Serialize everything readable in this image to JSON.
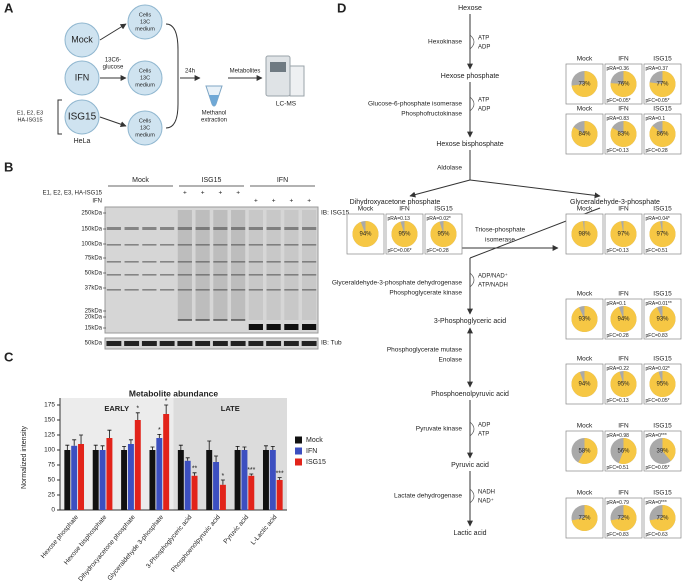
{
  "panel_a": {
    "letter": "A",
    "conditions": [
      "Mock",
      "IFN",
      "ISG15"
    ],
    "transfection": [
      "E1, E2, E3",
      "HA-ISG15"
    ],
    "cell_line": "HeLa",
    "label_step": [
      "13C6-",
      "glucose"
    ],
    "cells": [
      "Cells",
      "13C",
      "medium"
    ],
    "time": "24h",
    "extraction": [
      "Methanol",
      "extraction"
    ],
    "metabolites": "Metabolites",
    "instrument": "LC-MS"
  },
  "blot": {
    "letter": "B",
    "groups": [
      "Mock",
      "ISG15",
      "IFN"
    ],
    "rows": [
      {
        "label": "E1, E2, E3, HA-ISG15",
        "signs": [
          "+",
          "+",
          "+",
          "+"
        ]
      },
      {
        "label": "IFN",
        "signs": [
          "+",
          "+",
          "+",
          "+"
        ]
      }
    ],
    "markers": [
      "250kDa",
      "150kDa",
      "100kDa",
      "75kDa",
      "50kDa",
      "37kDa",
      "25kDa",
      "20kDa",
      "15kDa"
    ],
    "tub_marker": "50kDa",
    "ib_top": "IB: ISG15",
    "ib_bottom": "IB: Tub"
  },
  "chart_data": {
    "type": "bar",
    "letter": "C",
    "title": "Metabolite abundance",
    "y_label": "Normalized intensity",
    "categories": [
      "Hexose phosphate",
      "Hexose bisphosphate",
      "Dihydroxyacetone phosphate",
      "Glyceraldehyde 3-phosphate",
      "3-Phosphoglyceric acid",
      "Phosphoenolpyruvic acid",
      "Pyruvic acid",
      "L-Lactic acid"
    ],
    "series": [
      {
        "name": "Mock",
        "color": "#111111",
        "values": [
          100,
          100,
          100,
          100,
          100,
          100,
          100,
          100
        ],
        "errors": [
          8,
          8,
          6,
          5,
          8,
          15,
          6,
          7
        ],
        "significance": [
          null,
          null,
          null,
          null,
          null,
          null,
          null,
          null
        ]
      },
      {
        "name": "IFN",
        "color": "#3c4fc0",
        "values": [
          107,
          100,
          110,
          120,
          82,
          80,
          100,
          100
        ],
        "errors": [
          10,
          7,
          7,
          6,
          5,
          10,
          5,
          6
        ],
        "significance": [
          null,
          null,
          null,
          "*",
          null,
          null,
          null,
          null
        ]
      },
      {
        "name": "ISG15",
        "color": "#e2231a",
        "values": [
          110,
          120,
          150,
          160,
          57,
          42,
          57,
          50
        ],
        "errors": [
          15,
          13,
          12,
          15,
          5,
          8,
          3,
          4
        ],
        "significance": [
          null,
          null,
          "*",
          "*",
          "**",
          "*",
          "***",
          "***"
        ]
      }
    ],
    "regions": [
      {
        "label": "EARLY",
        "from": 0,
        "to": 3
      },
      {
        "label": "LATE",
        "from": 4,
        "to": 7
      }
    ],
    "ylim": [
      0,
      175
    ],
    "yticks": [
      0,
      25,
      50,
      75,
      100,
      125,
      150,
      175
    ]
  },
  "pathway": {
    "letter": "D",
    "nodes": [
      "Hexose",
      "Hexose phosphate",
      "Hexose bisphosphate",
      "Dihydroxyacetone phosphate",
      "Glyceraldehyde-3-phosphate",
      "3-Phosphoglyceric acid",
      "Phosphoenolpyruvic acid",
      "Pyruvic acid",
      "Lactic acid"
    ],
    "enzymes": [
      {
        "lines": [
          "Hexokinase"
        ],
        "color": "#999999"
      },
      {
        "lines": [
          "Glucose-6-phosphate isomerase",
          "Phosphofructokinase"
        ],
        "color": "#999999"
      },
      {
        "lines": [
          "Aldolase"
        ],
        "color": "#999999"
      },
      {
        "lines": [
          "Triose-phosphate",
          "isomerase"
        ],
        "color": "#999999"
      },
      {
        "lines": [
          "Glyceraldehyde-3-phosphate dehydrogenase",
          "Phosphoglycerate kinase"
        ],
        "color": "#d62020"
      },
      {
        "lines": [
          "Phosphoglycerate mutase",
          "Enolase"
        ],
        "color": "#999999"
      },
      {
        "lines": [
          "Pyruvate kinase"
        ],
        "color": "#999999"
      },
      {
        "lines": [
          "Lactate dehydrogenase"
        ],
        "color": "#999999"
      }
    ],
    "cofactors": [
      {
        "in": "ATP",
        "out": "ADP",
        "color": "#d62020"
      },
      {
        "in": "ATP",
        "out": "ADP",
        "color": "#d62020"
      },
      {
        "in": "ADP/NAD⁺",
        "out": "ATP/NADH",
        "color": "#7a3c9c"
      },
      {
        "in": "ADP",
        "out": "ATP",
        "color": "#d62020"
      },
      {
        "in": "NADH",
        "out": "NAD⁺",
        "color": "#3c4fc0"
      }
    ]
  },
  "pie_groups": [
    {
      "pies": [
        {
          "condition": "Mock",
          "value": 73,
          "label": "73%"
        },
        {
          "condition": "IFN",
          "value": 76,
          "label": "76%",
          "pRA": "pRA=0.36",
          "pFC": "pFC=0.05*"
        },
        {
          "condition": "ISG15",
          "value": 77,
          "label": "77%",
          "pRA": "pRA=0.37",
          "pFC": "pFC=0.05*"
        }
      ]
    },
    {
      "pies": [
        {
          "condition": "Mock",
          "value": 84,
          "label": "84%"
        },
        {
          "condition": "IFN",
          "value": 83,
          "label": "83%",
          "pRA": "pRA=0.83",
          "pFC": "pFC=0.13"
        },
        {
          "condition": "ISG15",
          "value": 86,
          "label": "86%",
          "pRA": "pRA=0.1",
          "pFC": "pFC=0.28"
        }
      ]
    },
    {
      "pies": [
        {
          "condition": "Mock",
          "value": 94,
          "label": "94%"
        },
        {
          "condition": "IFN",
          "value": 95,
          "label": "95%",
          "pRA": "pRA=0.13",
          "pFC": "pFC=0.06*"
        },
        {
          "condition": "ISG15",
          "value": 95,
          "label": "95%",
          "pRA": "pRA=0.02*",
          "pFC": "pFC=0.28"
        }
      ]
    },
    {
      "pies": [
        {
          "condition": "Mock",
          "value": 98,
          "label": "98%"
        },
        {
          "condition": "IFN",
          "value": 97,
          "label": "97%",
          "pFC": "pFC=0.13"
        },
        {
          "condition": "ISG15",
          "value": 97,
          "label": "97%",
          "pRA": "pRA=0.04*",
          "pFC": "pFC=0.51"
        }
      ]
    },
    {
      "pies": [
        {
          "condition": "Mock",
          "value": 93,
          "label": "93%"
        },
        {
          "condition": "IFN",
          "value": 94,
          "label": "94%",
          "pRA": "pRA=0.1",
          "pFC": "pFC=0.28"
        },
        {
          "condition": "ISG15",
          "value": 93,
          "label": "93%",
          "pRA": "pRA=0.01**",
          "pFC": "pFC=0.83"
        }
      ]
    },
    {
      "pies": [
        {
          "condition": "Mock",
          "value": 94,
          "label": "94%"
        },
        {
          "condition": "IFN",
          "value": 95,
          "label": "95%",
          "pRA": "pRA=0.22",
          "pFC": "pFC=0.13"
        },
        {
          "condition": "ISG15",
          "value": 95,
          "label": "95%",
          "pRA": "pRA=0.02*",
          "pFC": "pFC=0.05*"
        }
      ]
    },
    {
      "pies": [
        {
          "condition": "Mock",
          "value": 58,
          "label": "58%"
        },
        {
          "condition": "IFN",
          "value": 56,
          "label": "56%",
          "pRA": "pRA=0.98",
          "pFC": "pFC=0.51"
        },
        {
          "condition": "ISG15",
          "value": 39,
          "label": "39%",
          "pRA": "pRA=0***",
          "pFC": "pFC=0.05*"
        }
      ]
    },
    {
      "pies": [
        {
          "condition": "Mock",
          "value": 72,
          "label": "72%"
        },
        {
          "condition": "IFN",
          "value": 72,
          "label": "72%",
          "pRA": "pRA=0.79",
          "pFC": "pFC=0.83"
        },
        {
          "condition": "ISG15",
          "value": 72,
          "label": "72%",
          "pRA": "pRA=0***",
          "pFC": "pFC=0.63"
        }
      ]
    }
  ]
}
